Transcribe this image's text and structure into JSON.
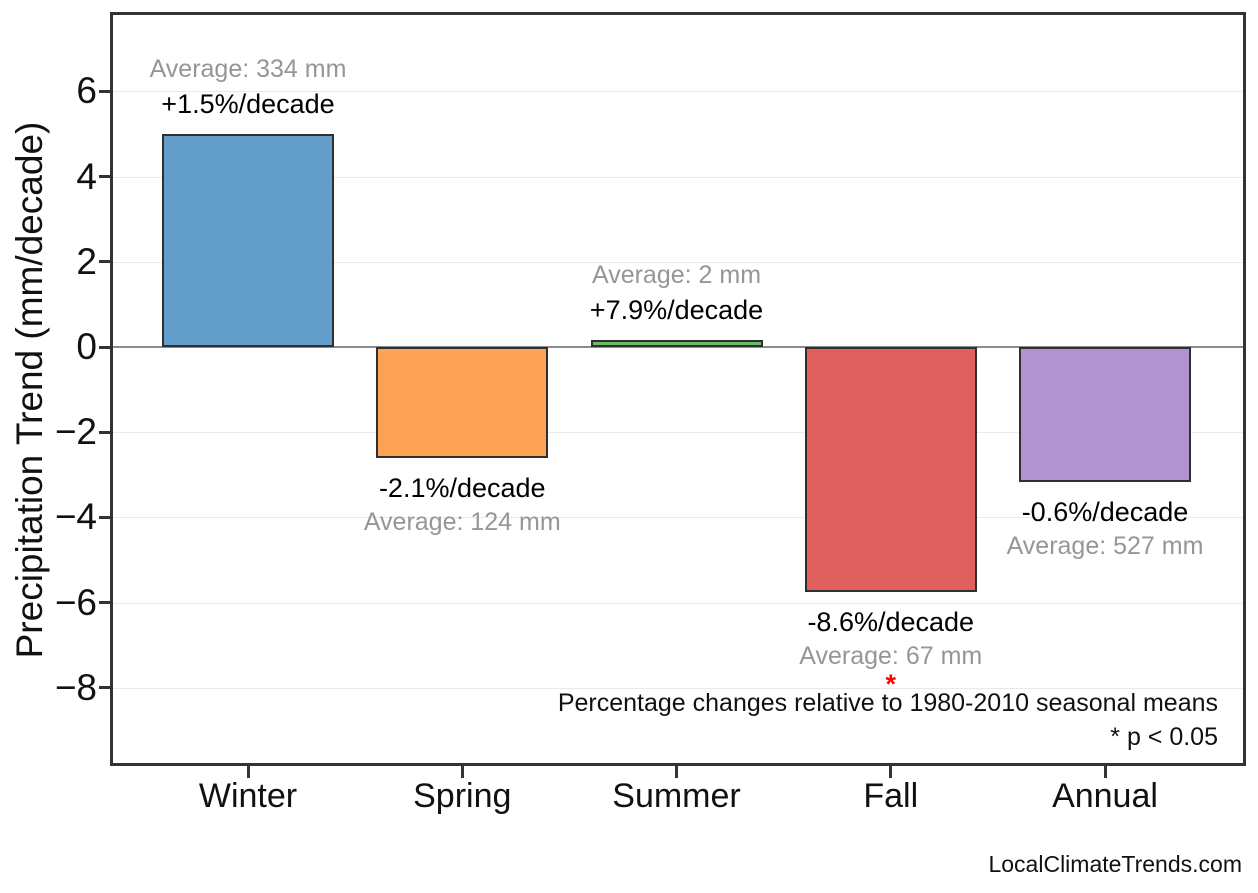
{
  "branding": {
    "attribution": "LocalClimateTrends.com"
  },
  "chart_data": {
    "type": "bar",
    "title": "",
    "xlabel": "",
    "ylabel": "Precipitation Trend (mm/decade)",
    "categories": [
      "Winter",
      "Spring",
      "Summer",
      "Fall",
      "Annual"
    ],
    "values_mm_per_decade": [
      5.01,
      -2.6,
      0.16,
      -5.76,
      -3.16
    ],
    "yticks": [
      6,
      4,
      2,
      0,
      -2,
      -4,
      -6,
      -8
    ],
    "ytick_labels": [
      "6",
      "4",
      "2",
      "0",
      "−2",
      "−4",
      "−6",
      "−8"
    ],
    "ylim": [
      -9.8,
      7.8
    ],
    "grid": "horizontal-light",
    "legend": "none",
    "bars": [
      {
        "category": "Winter",
        "value_mm_per_decade": 5.01,
        "percent_per_decade": 1.5,
        "average_mm": 334,
        "percent_label": "+1.5%/decade",
        "average_label": "Average: 334 mm",
        "color": "#639ECB",
        "significant": false
      },
      {
        "category": "Spring",
        "value_mm_per_decade": -2.6,
        "percent_per_decade": -2.1,
        "average_mm": 124,
        "percent_label": "-2.1%/decade",
        "average_label": "Average: 124 mm",
        "color": "#FCA355",
        "significant": false
      },
      {
        "category": "Summer",
        "value_mm_per_decade": 0.16,
        "percent_per_decade": 7.9,
        "average_mm": 2,
        "percent_label": "+7.9%/decade",
        "average_label": "Average: 2 mm",
        "color": "#6ABB66",
        "significant": false
      },
      {
        "category": "Fall",
        "value_mm_per_decade": -5.76,
        "percent_per_decade": -8.6,
        "average_mm": 67,
        "percent_label": "-8.6%/decade",
        "average_label": "Average: 67 mm",
        "color": "#E05F5F",
        "significant": true
      },
      {
        "category": "Annual",
        "value_mm_per_decade": -3.16,
        "percent_per_decade": -0.6,
        "average_mm": 527,
        "percent_label": "-0.6%/decade",
        "average_label": "Average: 527 mm",
        "color": "#B094D2",
        "significant": false
      }
    ],
    "annotations": {
      "footnote": "Percentage changes relative to 1980-2010 seasonal means",
      "significance_note": "* p < 0.05",
      "significance_marker": "*"
    },
    "colors": {
      "bar_edge": "#2F2F2F",
      "axis_frame": "#333333",
      "gridline": "#E9E9E9",
      "zero_line": "#8C8C8C",
      "average_text": "#969696",
      "percent_text": "#000000",
      "significance": "#FF0000"
    }
  }
}
